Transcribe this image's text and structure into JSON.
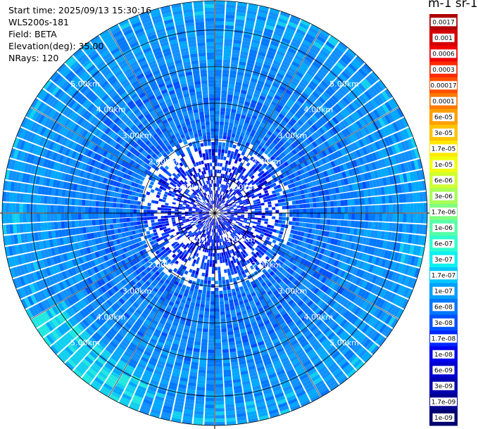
{
  "info": {
    "start_time": "Start time: 2025/09/13 15:30:16",
    "device": "WLS200s-181",
    "field": "Field: BETA",
    "elevation": "Elevation(deg): 35.00",
    "nrays": "NRays: 120"
  },
  "colorbar": {
    "title": "m-1 sr-1",
    "labels": [
      "0.0017",
      "0.001",
      "0.0006",
      "0.0003",
      "0.00017",
      "0.0001",
      "6e-05",
      "3e-05",
      "1.7e-05",
      "1e-05",
      "6e-06",
      "3e-06",
      "1.7e-06",
      "1e-06",
      "6e-07",
      "3e-07",
      "1.7e-07",
      "1e-07",
      "6e-08",
      "3e-08",
      "1.7e-08",
      "1e-08",
      "6e-09",
      "3e-09",
      "1.7e-09",
      "1e-09"
    ],
    "colors": [
      "#b00000",
      "#d40000",
      "#f00000",
      "#ff2a00",
      "#ff5000",
      "#ff7a00",
      "#ffa000",
      "#ffc400",
      "#ffe800",
      "#f0ff10",
      "#d0ff30",
      "#a8ff58",
      "#80ff80",
      "#58ffa8",
      "#30ffd0",
      "#10f0f0",
      "#00c8ff",
      "#00a0ff",
      "#0078ff",
      "#0050ff",
      "#0028ff",
      "#0000f0",
      "#0000d0",
      "#0000b0",
      "#000090",
      "#000070"
    ]
  },
  "chart_data": {
    "type": "heatmap",
    "projection": "polar (PPI scan)",
    "field": "BETA",
    "elevation_deg": 35.0,
    "n_rays": 120,
    "range_rings_km": [
      1,
      2,
      3,
      4,
      5
    ],
    "range_labels": [
      "1.00km",
      "2.00km",
      "3.00km",
      "4.00km",
      "5.00km"
    ],
    "max_range_km": 5.8,
    "dominant_values": "approx. 3e-08 to 1e-07 m-1 sr-1 across most of the scan; lower (~1e-08) near centre",
    "colors": {
      "low": "#0000e0",
      "mid": "#0078ff",
      "high": "#10f0f0"
    }
  }
}
